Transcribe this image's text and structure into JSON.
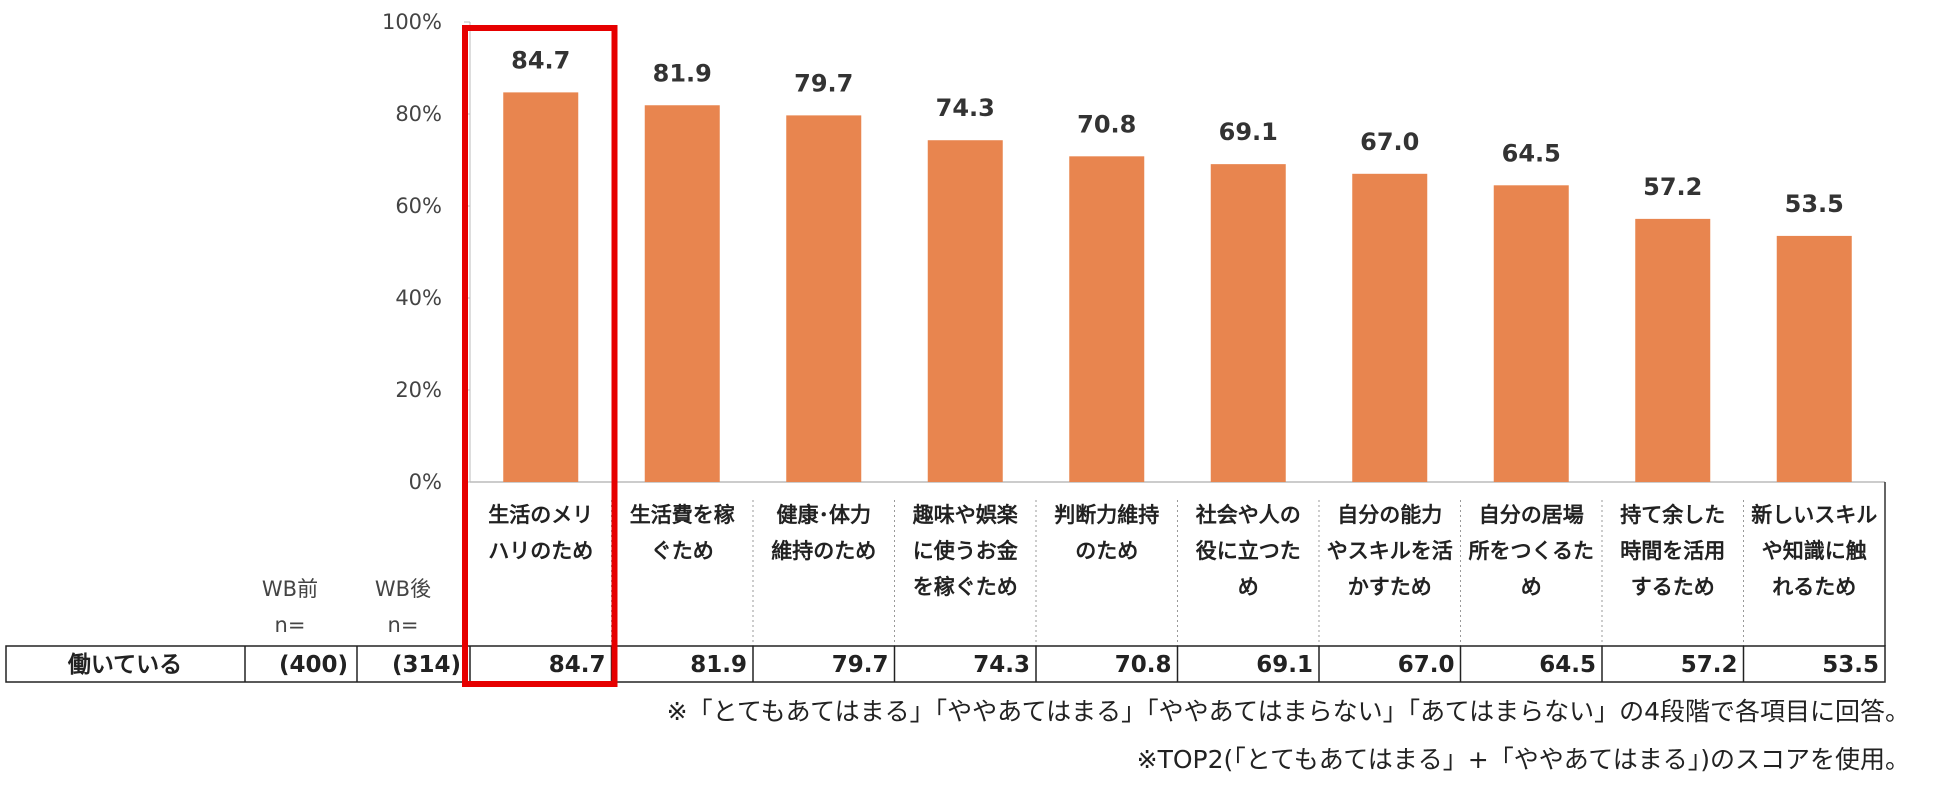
{
  "chart_data": {
    "type": "bar",
    "categories": [
      [
        "生活のメリ",
        "ハリのため"
      ],
      [
        "生活費を稼",
        "ぐため"
      ],
      [
        "健康･体力",
        "維持のため"
      ],
      [
        "趣味や娯楽",
        "に使うお金",
        "を稼ぐため"
      ],
      [
        "判断力維持",
        "のため"
      ],
      [
        "社会や人の",
        "役に立つた",
        "め"
      ],
      [
        "自分の能力",
        "やスキルを活",
        "かすため"
      ],
      [
        "自分の居場",
        "所をつくるた",
        "め"
      ],
      [
        "持て余した",
        "時間を活用",
        "するため"
      ],
      [
        "新しいスキル",
        "や知識に触",
        "れるため"
      ]
    ],
    "values": [
      84.7,
      81.9,
      79.7,
      74.3,
      70.8,
      69.1,
      67.0,
      64.5,
      57.2,
      53.5
    ],
    "value_labels": [
      "84.7",
      "81.9",
      "79.7",
      "74.3",
      "70.8",
      "69.1",
      "67.0",
      "64.5",
      "57.2",
      "53.5"
    ],
    "ylim": [
      0,
      100
    ],
    "yticks": [
      "0%",
      "20%",
      "40%",
      "60%",
      "80%",
      "100%"
    ],
    "bar_color": "#E8854F",
    "highlight_index": 0,
    "highlight_color": "#E60000"
  },
  "table": {
    "header_wb_before": [
      "WB前",
      "n="
    ],
    "header_wb_after": [
      "WB後",
      "n="
    ],
    "row_label": "働いている",
    "n_before": "(400)",
    "n_after": "(314)",
    "values": [
      "84.7",
      "81.9",
      "79.7",
      "74.3",
      "70.8",
      "69.1",
      "67.0",
      "64.5",
      "57.2",
      "53.5"
    ]
  },
  "notes": [
    "※「とてもあてはまる」「ややあてはまる」「ややあてはまらない」「あてはまらない」の4段階で各項目に回答。",
    "※TOP2(「とてもあてはまる」+「ややあてはまる」)のスコアを使用。"
  ]
}
